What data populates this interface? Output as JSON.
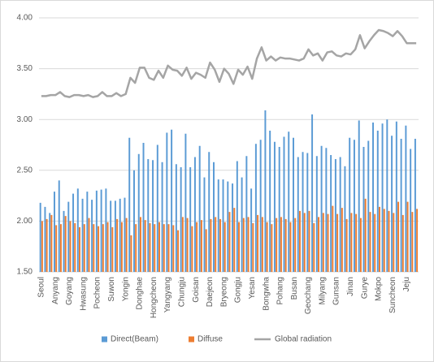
{
  "chart_data": {
    "type": "bar",
    "categories": [
      "Seoul",
      null,
      null,
      "Anyang",
      null,
      null,
      "Goyang",
      null,
      null,
      "Hwasung",
      null,
      null,
      "Pocheon",
      null,
      null,
      "Suwon",
      null,
      null,
      "Yongin",
      null,
      null,
      "Donghae",
      null,
      null,
      "Hongcheon",
      null,
      null,
      "Yangyang",
      null,
      null,
      "Chungju",
      null,
      null,
      "Goisan",
      null,
      null,
      "Daejeon",
      null,
      null,
      "Bryeong",
      null,
      null,
      "Gongju",
      null,
      null,
      "Yesan",
      null,
      null,
      "Bongwha",
      null,
      null,
      "Pohang",
      null,
      null,
      "Busan",
      null,
      null,
      "Geochang",
      null,
      null,
      "Milyang",
      null,
      null,
      "Gunsan",
      null,
      null,
      "Jinan",
      null,
      null,
      "Gurye",
      null,
      null,
      "Mokpo",
      null,
      null,
      "Suncheon",
      null,
      null,
      "Jeju",
      null,
      null
    ],
    "series": [
      {
        "name": "Direct(Beam)",
        "color": "#5b9bd5",
        "type": "bar",
        "values": [
          2.18,
          2.14,
          2.08,
          2.29,
          2.4,
          2.1,
          2.19,
          2.27,
          2.32,
          2.22,
          2.29,
          2.21,
          2.3,
          2.31,
          2.32,
          2.2,
          2.2,
          2.22,
          2.23,
          2.82,
          2.5,
          2.66,
          2.77,
          2.61,
          2.6,
          2.75,
          2.58,
          2.87,
          2.9,
          2.56,
          2.53,
          2.86,
          2.53,
          2.63,
          2.74,
          2.43,
          2.68,
          2.58,
          2.41,
          2.41,
          2.39,
          2.37,
          2.59,
          2.43,
          2.64,
          2.32,
          2.76,
          2.8,
          3.09,
          2.89,
          2.78,
          2.73,
          2.83,
          2.88,
          2.82,
          2.63,
          2.68,
          2.67,
          3.05,
          2.64,
          2.74,
          2.72,
          2.65,
          2.61,
          2.63,
          2.54,
          2.82,
          2.8,
          2.99,
          2.73,
          2.79,
          2.97,
          2.89,
          2.96,
          3.0,
          2.84,
          2.98,
          2.81,
          2.94,
          2.71,
          2.81
        ]
      },
      {
        "name": "Diffuse",
        "color": "#ed7d31",
        "type": "bar",
        "values": [
          2.0,
          2.02,
          2.06,
          1.96,
          1.97,
          2.05,
          2.0,
          1.98,
          1.94,
          1.97,
          2.03,
          1.97,
          1.95,
          1.97,
          1.99,
          1.94,
          2.02,
          1.99,
          2.03,
          1.86,
          1.97,
          2.04,
          2.01,
          1.98,
          1.97,
          1.99,
          1.97,
          1.97,
          1.96,
          1.91,
          2.04,
          2.03,
          1.95,
          1.99,
          2.01,
          1.92,
          2.02,
          2.04,
          2.02,
          1.99,
          2.09,
          2.13,
          1.99,
          2.03,
          2.04,
          1.98,
          2.06,
          2.04,
          1.99,
          1.97,
          2.03,
          2.04,
          2.02,
          1.99,
          2.03,
          2.1,
          2.08,
          2.1,
          1.98,
          2.04,
          2.08,
          2.07,
          2.15,
          2.07,
          2.13,
          2.02,
          2.08,
          2.07,
          2.03,
          2.22,
          2.09,
          2.07,
          2.14,
          2.12,
          2.1,
          2.08,
          2.19,
          2.06,
          2.19,
          2.09,
          2.12
        ]
      },
      {
        "name": "Global radiation",
        "color": "#a5a5a5",
        "type": "line",
        "values": [
          3.23,
          3.23,
          3.24,
          3.24,
          3.27,
          3.23,
          3.22,
          3.24,
          3.24,
          3.23,
          3.24,
          3.22,
          3.23,
          3.27,
          3.23,
          3.23,
          3.26,
          3.23,
          3.25,
          3.41,
          3.36,
          3.51,
          3.51,
          3.41,
          3.39,
          3.48,
          3.41,
          3.53,
          3.49,
          3.48,
          3.43,
          3.51,
          3.4,
          3.46,
          3.44,
          3.41,
          3.56,
          3.49,
          3.37,
          3.5,
          3.45,
          3.35,
          3.49,
          3.44,
          3.52,
          3.4,
          3.6,
          3.71,
          3.58,
          3.62,
          3.58,
          3.61,
          3.6,
          3.6,
          3.59,
          3.58,
          3.6,
          3.69,
          3.63,
          3.65,
          3.58,
          3.66,
          3.67,
          3.63,
          3.62,
          3.65,
          3.64,
          3.69,
          3.83,
          3.7,
          3.77,
          3.83,
          3.88,
          3.87,
          3.85,
          3.82,
          3.87,
          3.82,
          3.75,
          3.75,
          3.75
        ]
      }
    ],
    "ylim": [
      1.5,
      4.0
    ],
    "yticks": [
      {
        "value": 1.5,
        "label": "1.50"
      },
      {
        "value": 2.0,
        "label": "2.00"
      },
      {
        "value": 2.5,
        "label": "2.50"
      },
      {
        "value": 3.0,
        "label": "3.00"
      },
      {
        "value": 3.5,
        "label": "3.50"
      },
      {
        "value": 4.0,
        "label": "4.00"
      }
    ],
    "grid": true,
    "legend": "bottom"
  }
}
